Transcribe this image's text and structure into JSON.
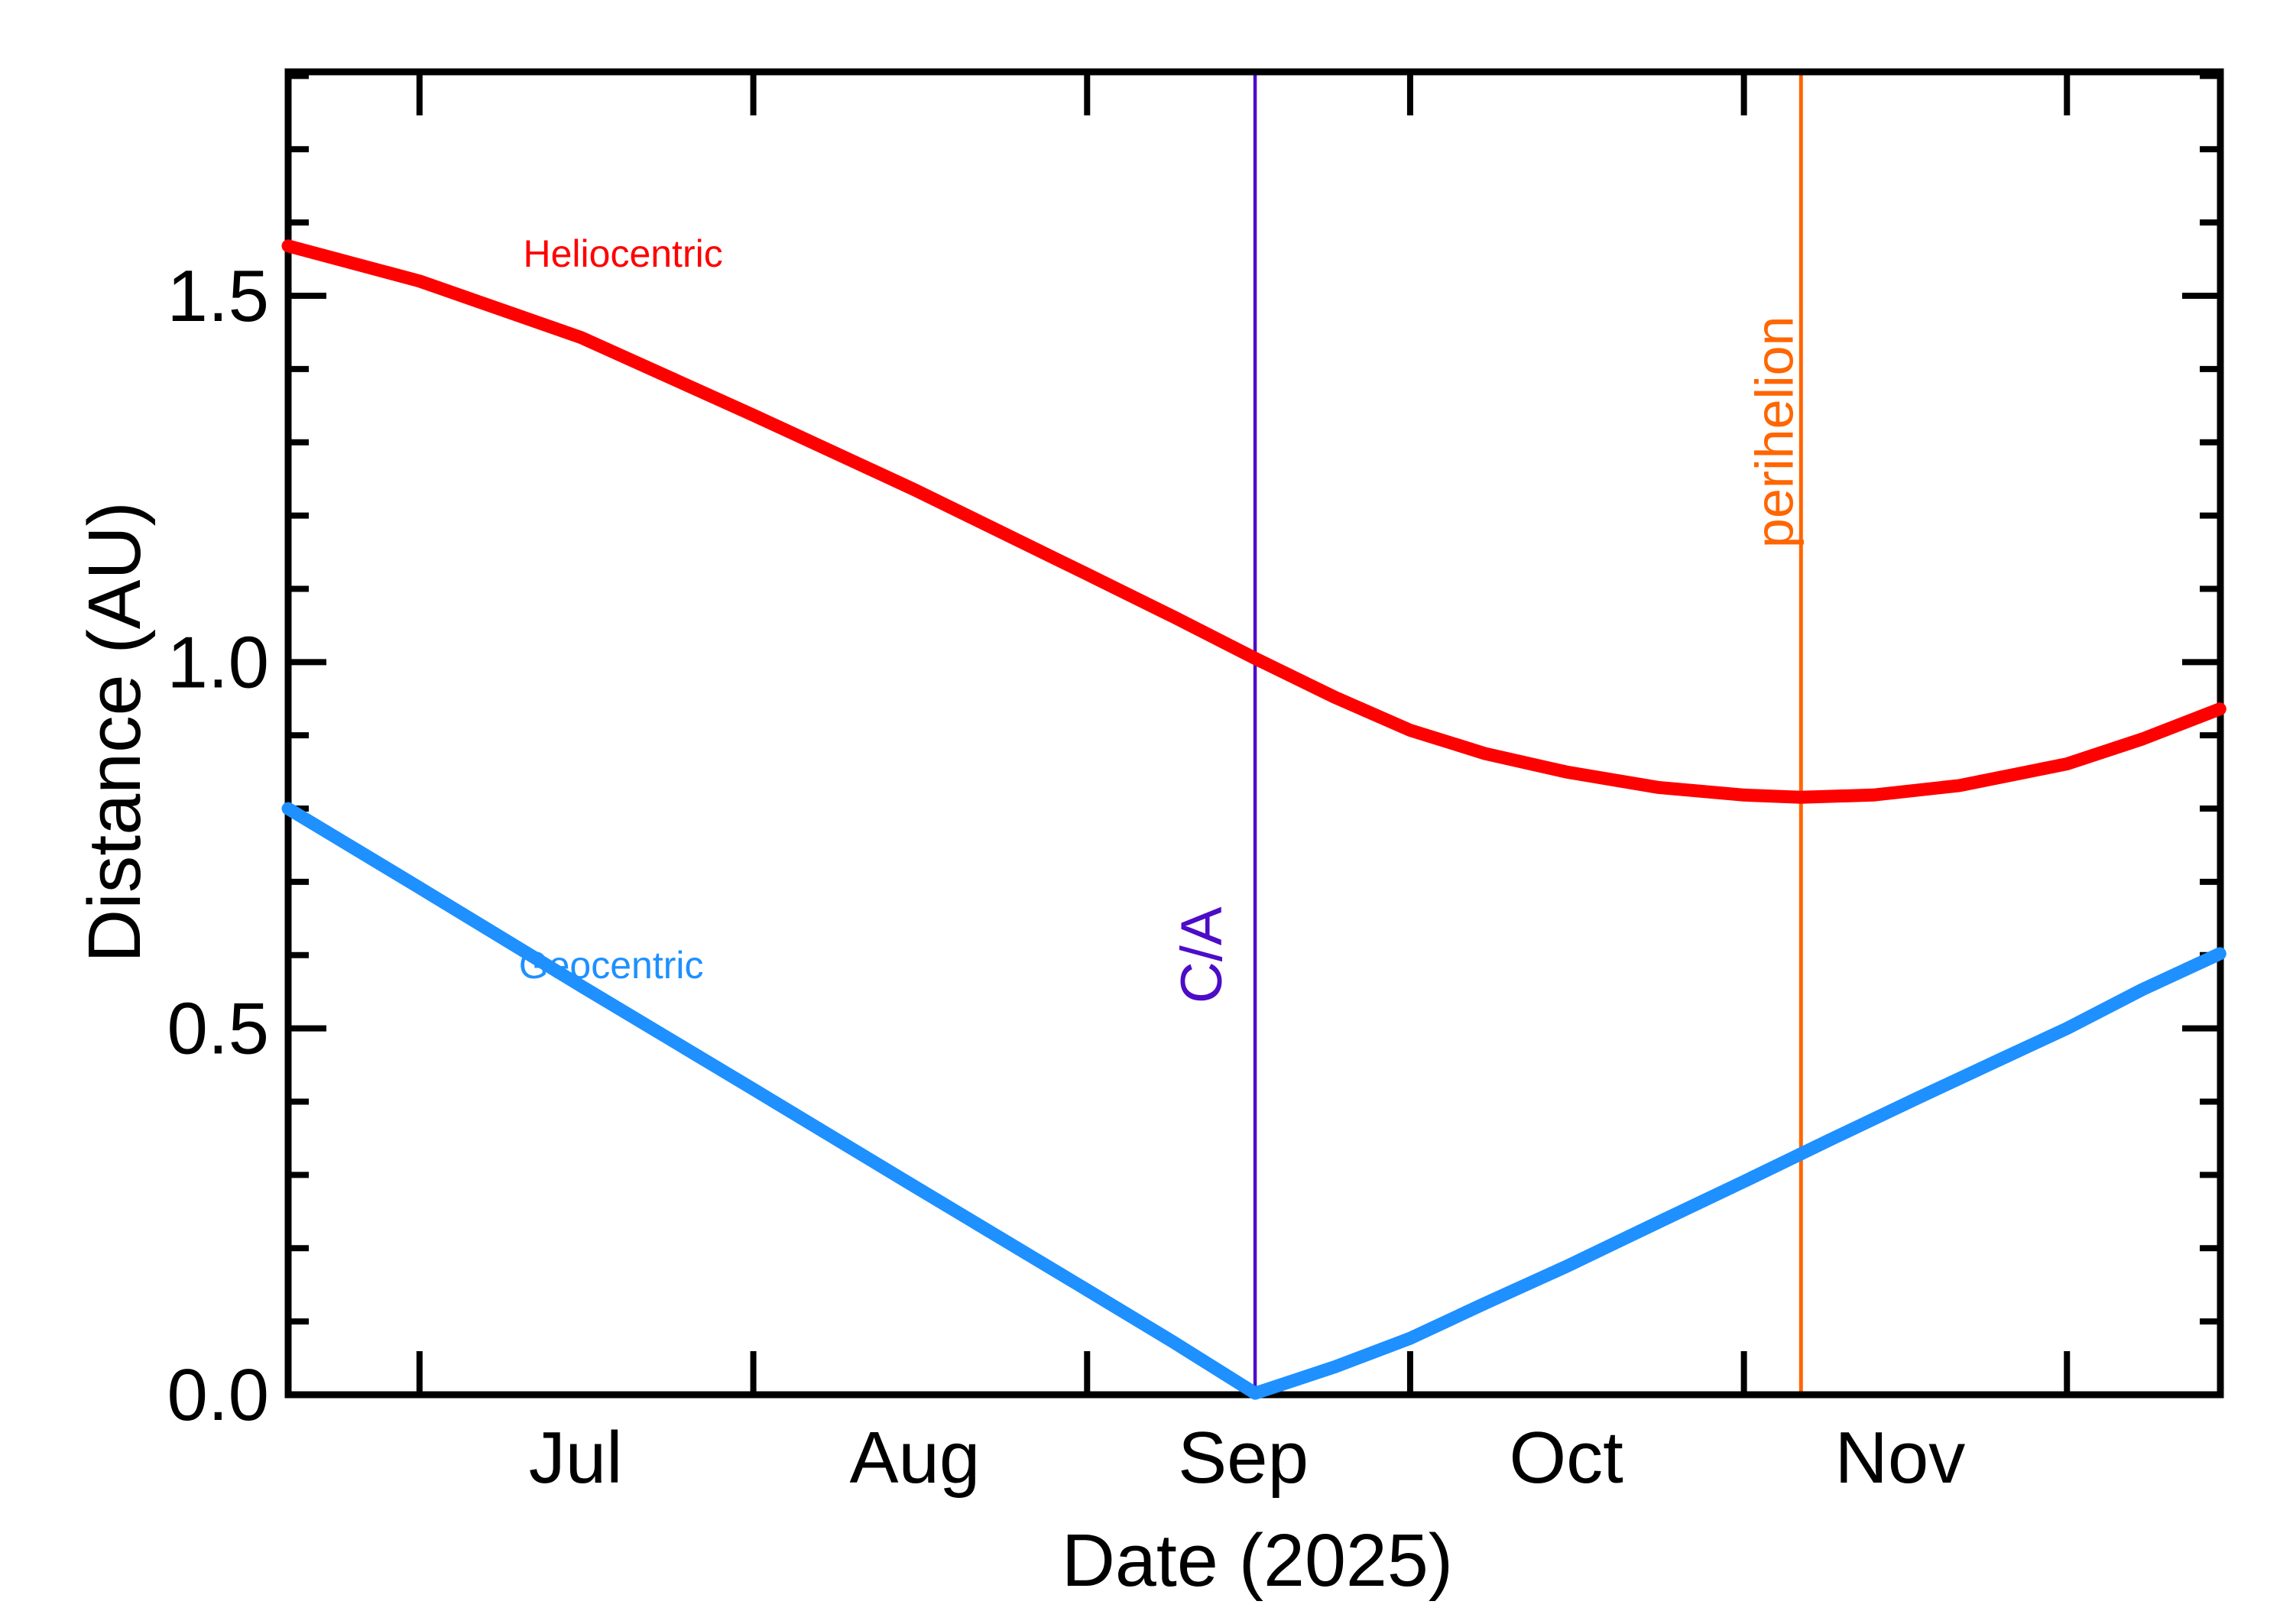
{
  "figure": {
    "background": "#FFFFFF",
    "frame_color": "#000000",
    "text_color": "#000000"
  },
  "axes": {
    "x_title": "Date (2025)",
    "y_title": "Distance (AU)",
    "x_tick_labels": [
      {
        "label": "Jul",
        "doy": 196.5
      },
      {
        "label": "Aug",
        "doy": 228.0
      },
      {
        "label": "Sep",
        "doy": 258.5
      },
      {
        "label": "Oct",
        "doy": 288.5
      },
      {
        "label": "Nov",
        "doy": 319.5
      }
    ],
    "y_tick_labels": [
      {
        "label": "0.0",
        "value": 0.0
      },
      {
        "label": "0.5",
        "value": 0.5
      },
      {
        "label": "1.0",
        "value": 1.0
      },
      {
        "label": "1.5",
        "value": 1.5
      }
    ]
  },
  "chart_data": {
    "type": "line",
    "title": "",
    "xlabel": "Date (2025)",
    "ylabel": "Distance (AU)",
    "x_unit": "day_of_year_2025",
    "x_range": [
      169.8,
      349.25
    ],
    "y_range": [
      0.0,
      1.8056
    ],
    "grid": false,
    "x_major_ticks_doy": [
      182,
      213,
      244,
      274,
      305,
      335
    ],
    "y_major_ticks": [
      0.0,
      0.5,
      1.0,
      1.5
    ],
    "y_minor_ticks": [
      0.1,
      0.2,
      0.3,
      0.4,
      0.6,
      0.7,
      0.8,
      0.9,
      1.1,
      1.2,
      1.3,
      1.4,
      1.6,
      1.7,
      1.8
    ],
    "series": [
      {
        "name": "Heliocentric",
        "color": "#FF0000",
        "x": [
          169.8,
          182,
          197,
          213,
          228,
          244,
          252,
          259.6,
          267,
          274,
          281,
          288.5,
          297,
          305,
          310.3,
          317,
          325,
          335,
          342,
          349.2
        ],
        "y": [
          1.568,
          1.52,
          1.443,
          1.337,
          1.235,
          1.12,
          1.062,
          1.005,
          0.952,
          0.907,
          0.875,
          0.85,
          0.829,
          0.8185,
          0.8155,
          0.8185,
          0.8315,
          0.861,
          0.895,
          0.936
        ]
      },
      {
        "name": "Geocentric",
        "color": "#1E90FF",
        "x": [
          169.8,
          182,
          197,
          213,
          228,
          244,
          252,
          259.6,
          267,
          274,
          281,
          288.5,
          297,
          305,
          313,
          321,
          329,
          335,
          342,
          349.2
        ],
        "y": [
          0.8,
          0.692,
          0.558,
          0.417,
          0.284,
          0.143,
          0.072,
          0.002,
          0.038,
          0.077,
          0.125,
          0.175,
          0.235,
          0.291,
          0.348,
          0.404,
          0.459,
          0.5,
          0.553,
          0.602
        ]
      }
    ],
    "vlines": [
      {
        "name": "close-approach-line",
        "doy": 259.6,
        "color": "#4D0CC8",
        "width": 4.5
      },
      {
        "name": "perihelion-line",
        "doy": 310.3,
        "color": "#FF6600",
        "width": 5
      }
    ],
    "annotations": [
      {
        "name": "heliocentric-label",
        "text": "Heliocentric",
        "color": "#FF0000",
        "x_doy": 200.9,
        "y_au": 1.558,
        "font": 50,
        "rotate": false
      },
      {
        "name": "geocentric-label",
        "text": "Geocentric",
        "color": "#1E90FF",
        "x_doy": 199.8,
        "y_au": 0.587,
        "font": 50,
        "rotate": false
      },
      {
        "name": "close-approach-label",
        "text": "C/A",
        "color": "#4D0CC8",
        "x_doy": 254.6,
        "y_au": 0.6,
        "font": 76,
        "rotate": true
      },
      {
        "name": "perihelion-label",
        "text": "perihelion",
        "color": "#FF6600",
        "x_doy": 307.8,
        "y_au": 1.314,
        "font": 70,
        "rotate": true
      }
    ]
  }
}
